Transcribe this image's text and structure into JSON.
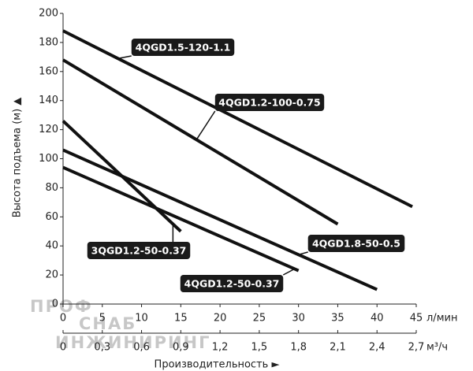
{
  "chart_data": {
    "type": "line",
    "y_label": "Высота подъема (м) ▲",
    "x_label": "Производительность ►",
    "x_unit": "л/мин",
    "x2_unit": "м³/ч",
    "watermark": [
      "ПРОФ",
      "СНАБ",
      "ИНЖИНИРИНГ"
    ],
    "xlim": [
      0,
      45
    ],
    "xticks": [
      0,
      5,
      10,
      15,
      20,
      25,
      30,
      35,
      40,
      45
    ],
    "x2lim": [
      0,
      2.7
    ],
    "x2ticks": [
      0,
      {
        "value": 0.3,
        "label": "0,3"
      },
      {
        "value": 0.6,
        "label": "0,6"
      },
      {
        "value": 0.9,
        "label": "0,9"
      },
      {
        "value": 1.2,
        "label": "1,2"
      },
      {
        "value": 1.5,
        "label": "1,5"
      },
      {
        "value": 1.8,
        "label": "1,8"
      },
      {
        "value": 2.1,
        "label": "2,1"
      },
      {
        "value": 2.4,
        "label": "2,4"
      },
      {
        "value": 2.7,
        "label": "2,7"
      }
    ],
    "ylim": [
      0,
      200
    ],
    "yticks": [
      0,
      20,
      40,
      60,
      80,
      100,
      120,
      140,
      160,
      180,
      200
    ],
    "grid": false,
    "series": [
      {
        "name": "4QGD1.5-120-1.1",
        "color": "#111111",
        "x": [
          0,
          44.5
        ],
        "values": [
          188,
          67
        ]
      },
      {
        "name": "4QGD1.2-100-0.75",
        "color": "#111111",
        "x": [
          0,
          35
        ],
        "values": [
          168,
          55
        ]
      },
      {
        "name": "3QGD1.2-50-0.37",
        "color": "#111111",
        "x": [
          0,
          15
        ],
        "values": [
          126,
          50
        ]
      },
      {
        "name": "4QGD1.8-50-0.5",
        "color": "#111111",
        "x": [
          0,
          40
        ],
        "values": [
          106,
          10
        ]
      },
      {
        "name": "4QGD1.2-50-0.37",
        "color": "#111111",
        "x": [
          0,
          30
        ],
        "values": [
          94,
          23
        ]
      }
    ]
  }
}
